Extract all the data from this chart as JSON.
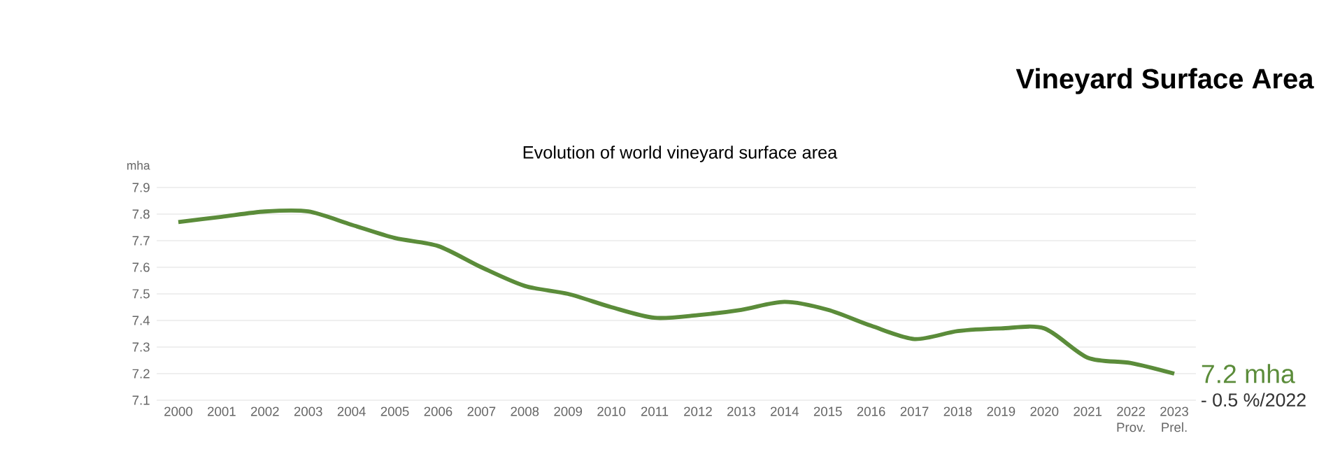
{
  "chart_data": {
    "type": "line",
    "title": "Vineyard Surface Area",
    "subtitle": "Evolution of world vineyard surface area",
    "ylabel": "mha",
    "categories": [
      "2000",
      "2001",
      "2002",
      "2003",
      "2004",
      "2005",
      "2006",
      "2007",
      "2008",
      "2009",
      "2010",
      "2011",
      "2012",
      "2013",
      "2014",
      "2015",
      "2016",
      "2017",
      "2018",
      "2019",
      "2020",
      "2021",
      "2022 Prov.",
      "2023 Prel."
    ],
    "series": [
      {
        "color": "#5b8c3a",
        "values": [
          7.77,
          7.79,
          7.81,
          7.81,
          7.76,
          7.71,
          7.68,
          7.6,
          7.53,
          7.5,
          7.45,
          7.41,
          7.42,
          7.44,
          7.47,
          7.44,
          7.38,
          7.33,
          7.36,
          7.37,
          7.37,
          7.26,
          7.24,
          7.2
        ]
      }
    ],
    "ylim": [
      7.1,
      7.9
    ],
    "yticks": [
      7.1,
      7.2,
      7.3,
      7.4,
      7.5,
      7.6,
      7.7,
      7.8,
      7.9
    ],
    "grid": "y",
    "marker": "none",
    "line_style": "solid",
    "annotations": [
      "7.2 mha",
      "- 0.5 %/2022"
    ]
  }
}
